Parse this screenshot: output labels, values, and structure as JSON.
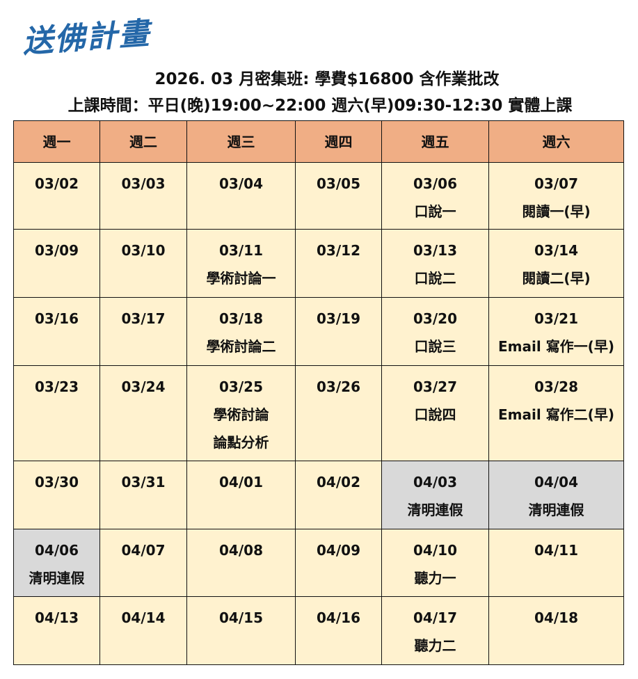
{
  "logo": "送佛計畫",
  "title": "2026. 03 月密集班: 學費$16800 含作業批改",
  "subtitle": "上課時間：平日(晚)19:00~22:00 週六(早)09:30-12:30 實體上課",
  "colors": {
    "header": "#f0ae85",
    "cell": "#fff2cf",
    "holiday": "#d9d9d9",
    "logo": "#2467a8"
  },
  "headers": [
    "週一",
    "週二",
    "週三",
    "週四",
    "週五",
    "週六"
  ],
  "rows": [
    [
      {
        "d": "03/02"
      },
      {
        "d": "03/03"
      },
      {
        "d": "03/04"
      },
      {
        "d": "03/05"
      },
      {
        "d": "03/06",
        "n": [
          "口說一"
        ]
      },
      {
        "d": "03/07",
        "n": [
          "閱讀一(早)"
        ]
      }
    ],
    [
      {
        "d": "03/09"
      },
      {
        "d": "03/10"
      },
      {
        "d": "03/11",
        "n": [
          "學術討論一"
        ]
      },
      {
        "d": "03/12"
      },
      {
        "d": "03/13",
        "n": [
          "口說二"
        ]
      },
      {
        "d": "03/14",
        "n": [
          "閱讀二(早)"
        ]
      }
    ],
    [
      {
        "d": "03/16"
      },
      {
        "d": "03/17"
      },
      {
        "d": "03/18",
        "n": [
          "學術討論二"
        ]
      },
      {
        "d": "03/19"
      },
      {
        "d": "03/20",
        "n": [
          "口說三"
        ]
      },
      {
        "d": "03/21",
        "n": [
          "Email 寫作一(早)"
        ]
      }
    ],
    [
      {
        "d": "03/23"
      },
      {
        "d": "03/24"
      },
      {
        "d": "03/25",
        "n": [
          "學術討論",
          "論點分析"
        ]
      },
      {
        "d": "03/26"
      },
      {
        "d": "03/27",
        "n": [
          "口說四"
        ]
      },
      {
        "d": "03/28",
        "n": [
          "Email 寫作二(早)"
        ]
      }
    ],
    [
      {
        "d": "03/30"
      },
      {
        "d": "03/31"
      },
      {
        "d": "04/01"
      },
      {
        "d": "04/02"
      },
      {
        "d": "04/03",
        "n": [
          "清明連假"
        ],
        "holiday": true
      },
      {
        "d": "04/04",
        "n": [
          "清明連假"
        ],
        "holiday": true
      }
    ],
    [
      {
        "d": "04/06",
        "n": [
          "清明連假"
        ],
        "holiday": true
      },
      {
        "d": "04/07"
      },
      {
        "d": "04/08"
      },
      {
        "d": "04/09"
      },
      {
        "d": "04/10",
        "n": [
          "聽力一"
        ]
      },
      {
        "d": "04/11"
      }
    ],
    [
      {
        "d": "04/13"
      },
      {
        "d": "04/14"
      },
      {
        "d": "04/15"
      },
      {
        "d": "04/16"
      },
      {
        "d": "04/17",
        "n": [
          "聽力二"
        ]
      },
      {
        "d": "04/18"
      }
    ]
  ]
}
